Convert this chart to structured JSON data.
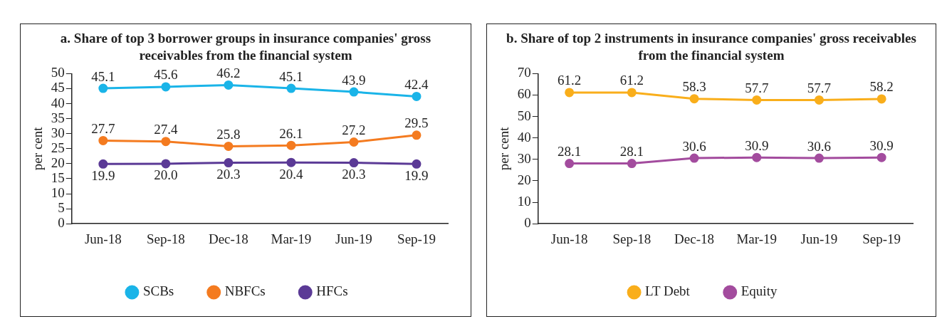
{
  "chart_data": [
    {
      "type": "line",
      "title": "a. Share of top 3 borrower groups in insurance companies' gross receivables from the financial system",
      "ylabel": "per cent",
      "categories": [
        "Jun-18",
        "Sep-18",
        "Dec-18",
        "Mar-19",
        "Jun-19",
        "Sep-19"
      ],
      "series": [
        {
          "name": "SCBs",
          "color": "#1ab4e8",
          "values": [
            45.1,
            45.6,
            46.2,
            45.1,
            43.9,
            42.4
          ]
        },
        {
          "name": "NBFCs",
          "color": "#f47b20",
          "values": [
            27.7,
            27.4,
            25.8,
            26.1,
            27.2,
            29.5
          ]
        },
        {
          "name": "HFCs",
          "color": "#5b3a96",
          "values": [
            19.9,
            20.0,
            20.3,
            20.4,
            20.3,
            19.9
          ],
          "value_labels": [
            "19.9",
            "20.0",
            "20.3",
            "20.4",
            "20.3",
            "19.9"
          ]
        }
      ],
      "ylim": [
        0,
        50
      ],
      "yticks": [
        0,
        5,
        10,
        15,
        20,
        25,
        30,
        35,
        40,
        45,
        50
      ],
      "grid": false,
      "legend": "bottom",
      "marker": "circle",
      "data_labels": true
    },
    {
      "type": "line",
      "title": "b. Share of top 2 instruments in insurance companies' gross receivables from the financial system",
      "ylabel": "per cent",
      "categories": [
        "Jun-18",
        "Sep-18",
        "Dec-18",
        "Mar-19",
        "Jun-19",
        "Sep-19"
      ],
      "series": [
        {
          "name": "LT Debt",
          "color": "#f9ae1b",
          "values": [
            61.2,
            61.2,
            58.3,
            57.7,
            57.7,
            58.2
          ]
        },
        {
          "name": "Equity",
          "color": "#a34c9e",
          "values": [
            28.1,
            28.1,
            30.6,
            30.9,
            30.6,
            30.9
          ]
        }
      ],
      "ylim": [
        0,
        70
      ],
      "yticks": [
        0,
        10,
        20,
        30,
        40,
        50,
        60,
        70
      ],
      "grid": false,
      "legend": "bottom",
      "marker": "circle",
      "data_labels": true
    }
  ]
}
